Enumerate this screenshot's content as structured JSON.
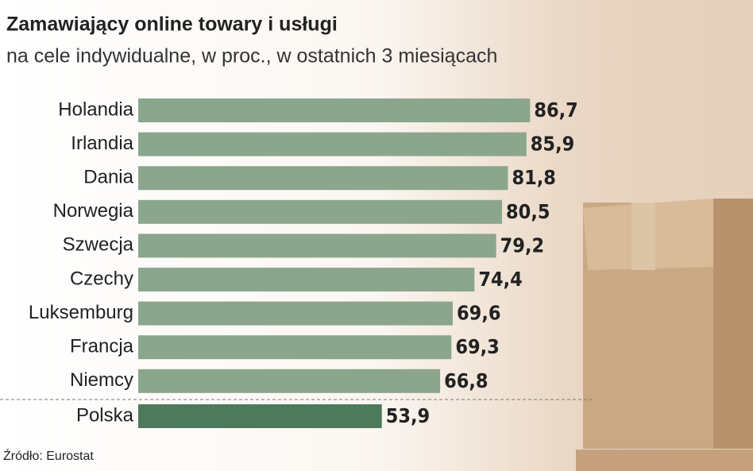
{
  "chart_data": {
    "type": "barh",
    "title": "Zamawiający  online towary i usługi",
    "subtitle": "na cele indywidualne, w proc., w ostatnich 3 miesiącach",
    "categories": [
      "Holandia",
      "Irlandia",
      "Dania",
      "Norwegia",
      "Szwecja",
      "Czechy",
      "Luksemburg",
      "Francja",
      "Niemcy",
      "Polska"
    ],
    "values": [
      86.7,
      85.9,
      81.8,
      80.5,
      79.2,
      74.4,
      69.6,
      69.3,
      66.8,
      53.9
    ],
    "value_labels": [
      "86,7",
      "85,9",
      "81,8",
      "80,5",
      "79,2",
      "74,4",
      "69,6",
      "69,3",
      "66,8",
      "53,9"
    ],
    "colors": [
      "#8ba68d",
      "#8ba68d",
      "#8ba68d",
      "#8ba68d",
      "#8ba68d",
      "#8ba68d",
      "#8ba68d",
      "#8ba68d",
      "#8ba68d",
      "#4e7a5c"
    ],
    "source": "Źródło: Eurostat"
  }
}
